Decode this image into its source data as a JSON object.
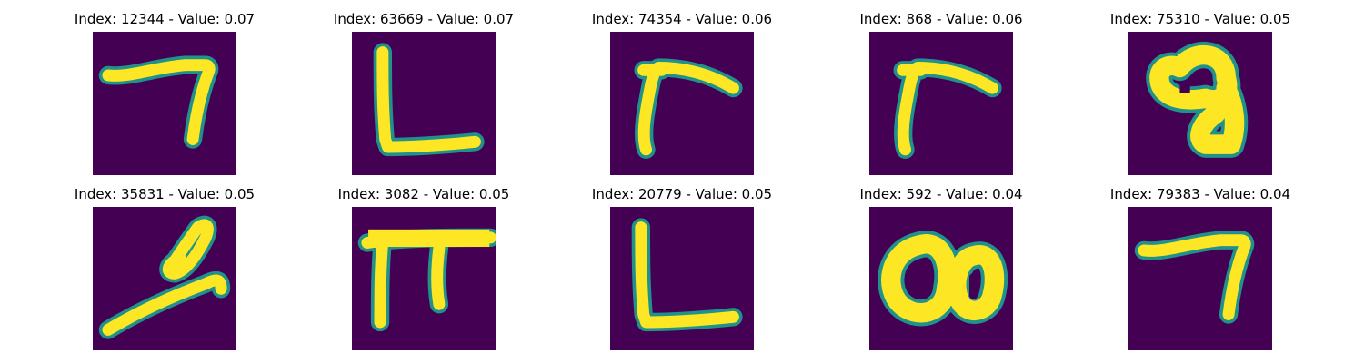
{
  "chart_data": {
    "type": "image-grid",
    "colormap": {
      "background": "#440154",
      "edge": "#21918c",
      "stroke": "#fde725"
    },
    "panels": [
      {
        "title": "Index: 12344 - Value: 0.07",
        "index": 12344,
        "value": 0.07,
        "glyph": "seven"
      },
      {
        "title": "Index: 63669 - Value: 0.07",
        "index": 63669,
        "value": 0.07,
        "glyph": "L"
      },
      {
        "title": "Index: 74354 - Value: 0.06",
        "index": 74354,
        "value": 0.06,
        "glyph": "r"
      },
      {
        "title": "Index: 868 - Value: 0.06",
        "index": 868,
        "value": 0.06,
        "glyph": "r"
      },
      {
        "title": "Index: 75310 - Value: 0.05",
        "index": 75310,
        "value": 0.05,
        "glyph": "nine-blob"
      },
      {
        "title": "Index: 35831 - Value: 0.05",
        "index": 35831,
        "value": 0.05,
        "glyph": "loop-stroke"
      },
      {
        "title": "Index: 3082 - Value: 0.05",
        "index": 3082,
        "value": 0.05,
        "glyph": "pi"
      },
      {
        "title": "Index: 20779 - Value: 0.05",
        "index": 20779,
        "value": 0.05,
        "glyph": "L"
      },
      {
        "title": "Index: 592 - Value: 0.04",
        "index": 592,
        "value": 0.04,
        "glyph": "double-zero"
      },
      {
        "title": "Index: 79383 - Value: 0.04",
        "index": 79383,
        "value": 0.04,
        "glyph": "seven"
      }
    ]
  }
}
